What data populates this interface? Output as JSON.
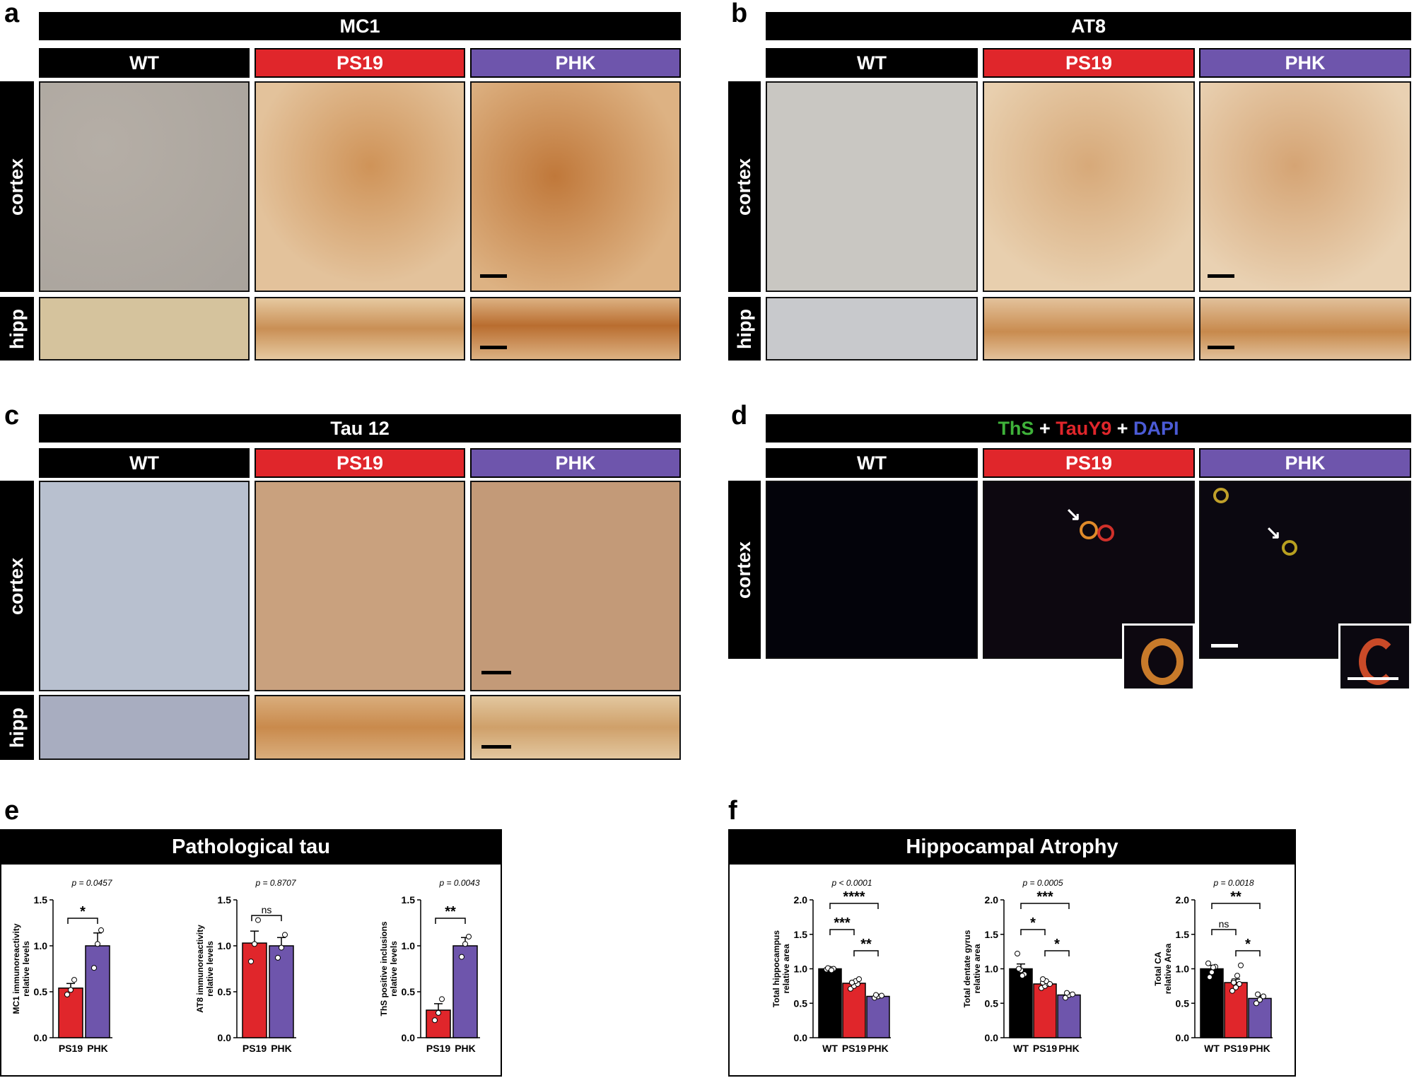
{
  "panels": {
    "a": {
      "label": "a",
      "title": "MC1"
    },
    "b": {
      "label": "b",
      "title": "AT8"
    },
    "c": {
      "label": "c",
      "title": "Tau 12"
    },
    "d": {
      "label": "d",
      "title_parts": [
        {
          "text": "ThS",
          "color": "#3fb23a"
        },
        {
          "text": " + ",
          "color": "#ffffff"
        },
        {
          "text": "TauY9",
          "color": "#e0262b"
        },
        {
          "text": " + ",
          "color": "#ffffff"
        },
        {
          "text": "DAPI",
          "color": "#4b5bd6"
        }
      ]
    },
    "e": {
      "label": "e",
      "title": "Pathological tau"
    },
    "f": {
      "label": "f",
      "title": "Hippocampal Atrophy"
    }
  },
  "groups": {
    "wt": "WT",
    "ps19": "PS19",
    "phk": "PHK"
  },
  "rows": {
    "cortex": "cortex",
    "hipp": "hipp"
  },
  "colors": {
    "wt": "#000000",
    "ps19": "#e0262b",
    "phk": "#6e55ac",
    "stain_brown": "#c98a4a",
    "nissl_blue": "#7d86b8"
  },
  "chart_data": [
    {
      "panel": "e",
      "type": "bar",
      "categories": [
        "PS19",
        "PHK"
      ],
      "values": [
        0.54,
        1.0
      ],
      "sem": [
        0.05,
        0.14
      ],
      "points": [
        [
          0.47,
          0.52,
          0.63
        ],
        [
          0.76,
          1.02,
          1.17
        ]
      ],
      "ylabel": "MC1 immunoreactivity relative levels",
      "ylim": [
        0,
        1.5
      ],
      "yticks": [
        "0.0",
        "0.5",
        "1.0",
        "1.5"
      ],
      "p_text": "p = 0.0457",
      "sig": [
        {
          "from": 0,
          "to": 1,
          "label": "*"
        }
      ]
    },
    {
      "panel": "e",
      "type": "bar",
      "categories": [
        "PS19",
        "PHK"
      ],
      "values": [
        1.03,
        1.0
      ],
      "sem": [
        0.13,
        0.09
      ],
      "points": [
        [
          0.83,
          1.02,
          1.28
        ],
        [
          0.87,
          0.98,
          1.12
        ]
      ],
      "ylabel": "AT8 immunoreactivity relative levels",
      "ylim": [
        0,
        1.5
      ],
      "yticks": [
        "0.0",
        "0.5",
        "1.0",
        "1.5"
      ],
      "p_text": "p = 0.8707",
      "sig": [
        {
          "from": 0,
          "to": 1,
          "label": "ns"
        }
      ]
    },
    {
      "panel": "e",
      "type": "bar",
      "categories": [
        "PS19",
        "PHK"
      ],
      "values": [
        0.3,
        1.0
      ],
      "sem": [
        0.07,
        0.09
      ],
      "points": [
        [
          0.19,
          0.27,
          0.42
        ],
        [
          0.88,
          1.02,
          1.1
        ]
      ],
      "ylabel": "ThS positive inclusions relative levels",
      "ylim": [
        0,
        1.5
      ],
      "yticks": [
        "0.0",
        "0.5",
        "1.0",
        "1.5"
      ],
      "p_text": "p = 0.0043",
      "sig": [
        {
          "from": 0,
          "to": 1,
          "label": "**"
        }
      ]
    },
    {
      "panel": "f",
      "type": "bar",
      "categories": [
        "WT",
        "PS19",
        "PHK"
      ],
      "values": [
        1.0,
        0.79,
        0.6
      ],
      "sem": [
        0.02,
        0.03,
        0.02
      ],
      "points": [
        [
          0.99,
          1.0,
          1.0,
          1.01,
          0.98
        ],
        [
          0.71,
          0.75,
          0.78,
          0.8,
          0.82,
          0.85,
          0.8
        ],
        [
          0.58,
          0.6,
          0.61,
          0.62
        ]
      ],
      "ylabel": "Total hippocampus relative area",
      "ylim": [
        0,
        2.0
      ],
      "yticks": [
        "0.0",
        "0.5",
        "1.0",
        "1.5",
        "2.0"
      ],
      "p_text": "p < 0.0001",
      "sig": [
        {
          "from": 0,
          "to": 1,
          "label": "***"
        },
        {
          "from": 1,
          "to": 2,
          "label": "**"
        },
        {
          "from": 0,
          "to": 2,
          "label": "****"
        }
      ]
    },
    {
      "panel": "f",
      "type": "bar",
      "categories": [
        "WT",
        "PS19",
        "PHK"
      ],
      "values": [
        1.0,
        0.78,
        0.62
      ],
      "sem": [
        0.07,
        0.03,
        0.02
      ],
      "points": [
        [
          1.22,
          0.98,
          0.92,
          1.0,
          0.9
        ],
        [
          0.72,
          0.75,
          0.78,
          0.8,
          0.82,
          0.78,
          0.85
        ],
        [
          0.58,
          0.62,
          0.63,
          0.65
        ]
      ],
      "ylabel": "Total dentate gyrus relative area",
      "ylim": [
        0,
        2.0
      ],
      "yticks": [
        "0.0",
        "0.5",
        "1.0",
        "1.5",
        "2.0"
      ],
      "p_text": "p = 0.0005",
      "sig": [
        {
          "from": 0,
          "to": 1,
          "label": "*"
        },
        {
          "from": 1,
          "to": 2,
          "label": "*"
        },
        {
          "from": 0,
          "to": 2,
          "label": "***"
        }
      ]
    },
    {
      "panel": "f",
      "type": "bar",
      "categories": [
        "WT",
        "PS19",
        "PHK"
      ],
      "values": [
        1.0,
        0.8,
        0.57
      ],
      "sem": [
        0.05,
        0.05,
        0.04
      ],
      "points": [
        [
          1.08,
          0.95,
          1.03,
          0.88,
          1.02
        ],
        [
          0.68,
          0.73,
          0.78,
          0.82,
          0.9,
          1.05,
          0.8
        ],
        [
          0.5,
          0.55,
          0.6,
          0.63
        ]
      ],
      "ylabel": "Total CA relative Area",
      "ylim": [
        0,
        2.0
      ],
      "yticks": [
        "0.0",
        "0.5",
        "1.0",
        "1.5",
        "2.0"
      ],
      "p_text": "p = 0.0018",
      "sig": [
        {
          "from": 0,
          "to": 1,
          "label": "ns"
        },
        {
          "from": 1,
          "to": 2,
          "label": "*"
        },
        {
          "from": 0,
          "to": 2,
          "label": "**"
        }
      ]
    }
  ]
}
